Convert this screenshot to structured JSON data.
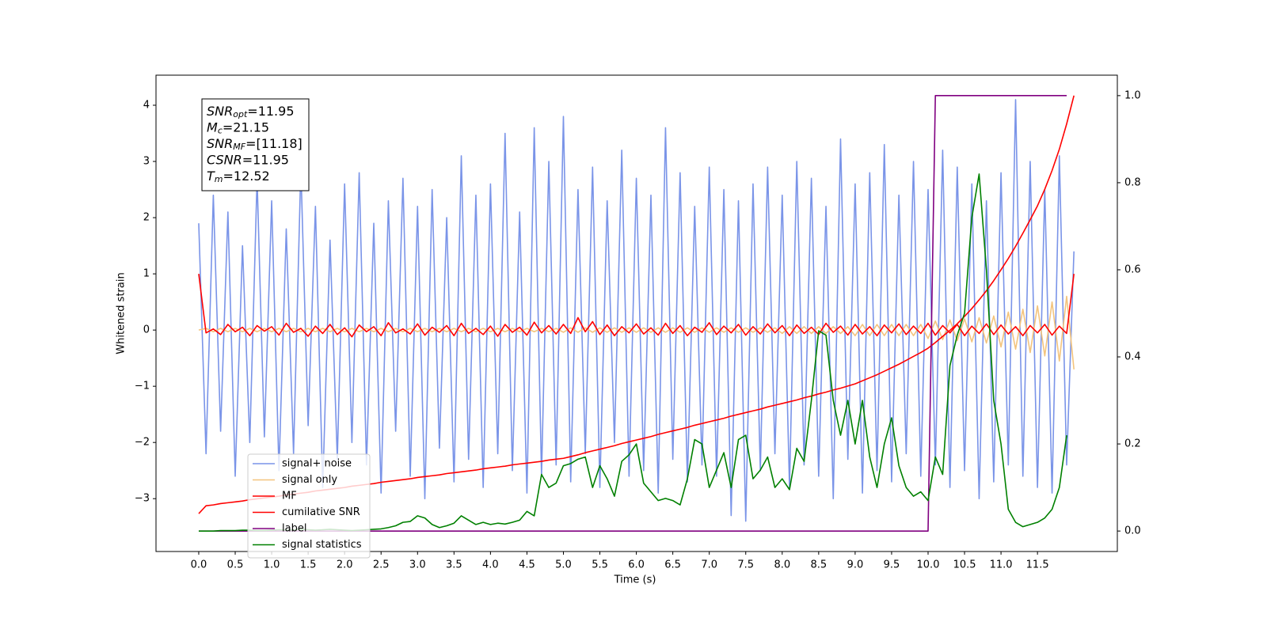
{
  "chart_data": {
    "type": "line",
    "xlabel": "Time (s)",
    "ylabel": "Whitened strain",
    "xlim": [
      -0.586,
      12.595
    ],
    "ylim": [
      -3.94,
      4.535
    ],
    "y2lim": [
      -0.047,
      1.047
    ],
    "xticks": [
      {
        "value": 0,
        "label": "0.0"
      },
      0.5,
      {
        "value": 1,
        "label": "1.0"
      },
      1.5,
      {
        "value": 2,
        "label": "2.0"
      },
      2.5,
      {
        "value": 3,
        "label": "3.0"
      },
      3.5,
      {
        "value": 4,
        "label": "4.0"
      },
      4.5,
      {
        "value": 5,
        "label": "5.0"
      },
      5.5,
      {
        "value": 6,
        "label": "6.0"
      },
      6.5,
      {
        "value": 7,
        "label": "7.0"
      },
      7.5,
      {
        "value": 8,
        "label": "8.0"
      },
      8.5,
      {
        "value": 9,
        "label": "9.0"
      },
      9.5,
      {
        "value": 10,
        "label": "10.0"
      },
      10.5,
      {
        "value": 11,
        "label": "11.0"
      },
      11.5
    ],
    "yticks": [
      {
        "value": -3,
        "label": "−3"
      },
      {
        "value": -2,
        "label": "−2"
      },
      {
        "value": -1,
        "label": "−1"
      },
      0,
      1,
      2,
      3,
      4
    ],
    "y2ticks": [
      {
        "value": 0,
        "label": "0.0"
      },
      0.2,
      0.4,
      0.6,
      0.8,
      {
        "value": 1,
        "label": "1.0"
      }
    ],
    "legend": "lower left",
    "grid": false,
    "annotation": [
      {
        "name": "SNR",
        "sub": "opt",
        "text": "=11.95"
      },
      {
        "name": "M",
        "sub": "c",
        "text": "=21.15"
      },
      {
        "name": "SNR",
        "sub": "MF",
        "text": "=[11.18]"
      },
      {
        "name": "CSNR",
        "text": "=11.95"
      },
      {
        "name": "T",
        "sub": "m",
        "text": "=12.52"
      }
    ],
    "x": [
      0,
      0.1,
      0.2,
      0.3,
      0.4,
      0.5,
      0.6,
      0.7,
      0.8,
      0.9,
      1.0,
      1.1,
      1.2,
      1.3,
      1.4,
      1.5,
      1.6,
      1.7,
      1.8,
      1.9,
      2.0,
      2.1,
      2.2,
      2.3,
      2.4,
      2.5,
      2.6,
      2.7,
      2.8,
      2.9,
      3.0,
      3.1,
      3.2,
      3.3,
      3.4,
      3.5,
      3.6,
      3.7,
      3.8,
      3.9,
      4.0,
      4.1,
      4.2,
      4.3,
      4.4,
      4.5,
      4.6,
      4.7,
      4.8,
      4.9,
      5.0,
      5.1,
      5.2,
      5.3,
      5.4,
      5.5,
      5.6,
      5.7,
      5.8,
      5.9,
      6.0,
      6.1,
      6.2,
      6.3,
      6.4,
      6.5,
      6.6,
      6.7,
      6.8,
      6.9,
      7.0,
      7.1,
      7.2,
      7.3,
      7.4,
      7.5,
      7.6,
      7.7,
      7.8,
      7.9,
      8.0,
      8.1,
      8.2,
      8.3,
      8.4,
      8.5,
      8.6,
      8.7,
      8.8,
      8.9,
      9.0,
      9.1,
      9.2,
      9.3,
      9.4,
      9.5,
      9.6,
      9.7,
      9.8,
      9.9,
      10.0,
      10.1,
      10.2,
      10.3,
      10.4,
      10.5,
      10.6,
      10.7,
      10.8,
      10.9,
      11.0,
      11.1,
      11.2,
      11.3,
      11.4,
      11.5,
      11.6,
      11.7,
      11.8,
      11.9,
      12.0
    ],
    "series": [
      {
        "name": "signal+ noise",
        "color": "#7a94e8",
        "values": [
          1.9,
          -2.2,
          2.4,
          -1.8,
          2.1,
          -2.6,
          1.5,
          -2.0,
          2.7,
          -1.9,
          2.3,
          -2.5,
          1.8,
          -2.2,
          2.9,
          -1.7,
          2.2,
          -2.8,
          1.6,
          -2.3,
          2.6,
          -2.0,
          2.8,
          -2.4,
          1.9,
          -2.9,
          2.3,
          -1.8,
          2.7,
          -2.6,
          2.2,
          -3.0,
          2.5,
          -2.1,
          2.0,
          -2.7,
          3.1,
          -2.3,
          2.4,
          -2.8,
          2.6,
          -2.2,
          3.5,
          -2.5,
          2.1,
          -2.9,
          3.6,
          -2.6,
          3.0,
          -2.4,
          3.8,
          -2.7,
          2.5,
          -2.2,
          2.9,
          -2.8,
          2.3,
          -2.0,
          3.2,
          -2.6,
          2.7,
          -2.5,
          2.4,
          -2.9,
          3.6,
          -2.3,
          2.8,
          -2.7,
          2.2,
          -2.4,
          2.9,
          -2.6,
          2.5,
          -3.3,
          2.3,
          -3.4,
          2.6,
          -2.5,
          2.9,
          -2.2,
          2.4,
          -2.8,
          3.0,
          -2.4,
          2.7,
          -2.6,
          2.2,
          -3.0,
          3.4,
          -2.3,
          2.6,
          -2.9,
          2.8,
          -2.5,
          3.3,
          -2.7,
          2.4,
          -2.2,
          3.0,
          -2.6,
          2.5,
          -2.4,
          3.2,
          -2.8,
          2.9,
          -2.5,
          2.6,
          -3.0,
          2.3,
          -2.7,
          2.8,
          -2.4,
          4.1,
          -2.6,
          3.0,
          -2.8,
          2.5,
          -2.9,
          3.1,
          -2.4,
          1.4
        ]
      },
      {
        "name": "signal only",
        "color": "#f3c47e",
        "values": [
          0,
          0.03,
          -0.03,
          0.03,
          -0.03,
          0.03,
          -0.03,
          0.03,
          -0.03,
          0.03,
          -0.03,
          0.03,
          -0.03,
          0.03,
          -0.03,
          0.03,
          -0.03,
          0.03,
          -0.03,
          0.03,
          -0.03,
          0.03,
          -0.03,
          0.03,
          -0.03,
          0.03,
          -0.03,
          0.03,
          -0.03,
          0.03,
          -0.03,
          0.03,
          -0.03,
          0.03,
          -0.03,
          0.03,
          -0.03,
          0.03,
          -0.03,
          0.03,
          -0.03,
          0.03,
          -0.03,
          0.03,
          -0.03,
          0.03,
          -0.03,
          0.03,
          -0.03,
          0.03,
          -0.04,
          0.04,
          -0.04,
          0.04,
          -0.04,
          0.04,
          -0.04,
          0.04,
          -0.04,
          0.04,
          -0.04,
          0.04,
          -0.04,
          0.04,
          -0.04,
          0.04,
          -0.04,
          0.04,
          -0.04,
          0.04,
          -0.04,
          0.04,
          -0.04,
          0.04,
          -0.04,
          0.04,
          -0.04,
          0.04,
          -0.04,
          0.04,
          -0.06,
          0.06,
          -0.06,
          0.06,
          -0.06,
          0.06,
          -0.06,
          0.06,
          -0.06,
          0.06,
          -0.1,
          0.1,
          -0.1,
          0.1,
          -0.1,
          0.1,
          -0.1,
          0.1,
          -0.1,
          0.1,
          -0.15,
          0.16,
          -0.17,
          0.18,
          -0.19,
          0.2,
          -0.21,
          0.22,
          -0.23,
          0.25,
          -0.3,
          0.32,
          -0.34,
          0.37,
          -0.4,
          0.43,
          -0.46,
          0.5,
          -0.55,
          0.6,
          -0.7
        ]
      },
      {
        "name": "MF",
        "color": "#ff0000",
        "values": [
          1.0,
          -0.05,
          0.02,
          -0.08,
          0.1,
          -0.03,
          0.05,
          -0.1,
          0.08,
          -0.02,
          0.06,
          -0.09,
          0.12,
          -0.04,
          0.03,
          -0.11,
          0.07,
          -0.06,
          0.1,
          -0.08,
          0.04,
          -0.12,
          0.09,
          -0.03,
          0.06,
          -0.1,
          0.13,
          -0.05,
          0.02,
          -0.07,
          0.11,
          -0.09,
          0.05,
          -0.04,
          0.08,
          -0.1,
          0.12,
          -0.06,
          0.03,
          -0.08,
          0.07,
          -0.11,
          0.1,
          -0.04,
          0.05,
          -0.09,
          0.14,
          -0.05,
          0.08,
          -0.07,
          0.1,
          -0.06,
          0.22,
          -0.03,
          0.15,
          -0.08,
          0.09,
          -0.1,
          0.06,
          -0.05,
          0.11,
          -0.07,
          0.04,
          -0.09,
          0.12,
          -0.06,
          0.08,
          -0.1,
          0.05,
          -0.04,
          0.13,
          -0.08,
          0.07,
          -0.05,
          0.1,
          -0.09,
          0.06,
          -0.07,
          0.11,
          -0.05,
          0.08,
          -0.1,
          0.09,
          -0.06,
          0.05,
          -0.08,
          0.12,
          -0.04,
          0.07,
          -0.09,
          0.1,
          -0.07,
          0.06,
          -0.1,
          0.09,
          -0.05,
          0.11,
          -0.08,
          0.07,
          -0.06,
          0.12,
          -0.09,
          0.08,
          -0.05,
          0.1,
          -0.1,
          0.07,
          -0.06,
          0.11,
          -0.08,
          0.09,
          -0.07,
          0.06,
          -0.1,
          0.08,
          -0.05,
          0.1,
          -0.09,
          0.07,
          -0.06,
          1.0
        ]
      },
      {
        "name": "cumilative SNR",
        "color": "#ff0000",
        "axis": "y2",
        "values": [
          0.04,
          0.058,
          0.06,
          0.063,
          0.065,
          0.067,
          0.069,
          0.072,
          0.074,
          0.076,
          0.078,
          0.08,
          0.083,
          0.085,
          0.087,
          0.089,
          0.092,
          0.094,
          0.096,
          0.098,
          0.1,
          0.103,
          0.105,
          0.107,
          0.109,
          0.112,
          0.114,
          0.116,
          0.118,
          0.12,
          0.123,
          0.125,
          0.127,
          0.129,
          0.132,
          0.134,
          0.136,
          0.138,
          0.14,
          0.143,
          0.145,
          0.147,
          0.149,
          0.152,
          0.154,
          0.156,
          0.158,
          0.16,
          0.163,
          0.165,
          0.167,
          0.171,
          0.175,
          0.18,
          0.184,
          0.188,
          0.192,
          0.196,
          0.201,
          0.205,
          0.209,
          0.213,
          0.217,
          0.222,
          0.226,
          0.23,
          0.234,
          0.238,
          0.243,
          0.247,
          0.251,
          0.255,
          0.259,
          0.264,
          0.268,
          0.272,
          0.276,
          0.28,
          0.285,
          0.289,
          0.293,
          0.297,
          0.301,
          0.306,
          0.31,
          0.315,
          0.319,
          0.324,
          0.328,
          0.333,
          0.338,
          0.345,
          0.352,
          0.359,
          0.367,
          0.375,
          0.383,
          0.392,
          0.401,
          0.41,
          0.42,
          0.433,
          0.447,
          0.461,
          0.476,
          0.493,
          0.511,
          0.531,
          0.552,
          0.575,
          0.6,
          0.626,
          0.654,
          0.684,
          0.715,
          0.747,
          0.785,
          0.828,
          0.877,
          0.935,
          1.0
        ]
      },
      {
        "name": "label",
        "color": "#800080",
        "axis": "y2",
        "values": [
          0,
          0,
          0,
          0,
          0,
          0,
          0,
          0,
          0,
          0,
          0,
          0,
          0,
          0,
          0,
          0,
          0,
          0,
          0,
          0,
          0,
          0,
          0,
          0,
          0,
          0,
          0,
          0,
          0,
          0,
          0,
          0,
          0,
          0,
          0,
          0,
          0,
          0,
          0,
          0,
          0,
          0,
          0,
          0,
          0,
          0,
          0,
          0,
          0,
          0,
          0,
          0,
          0,
          0,
          0,
          0,
          0,
          0,
          0,
          0,
          0,
          0,
          0,
          0,
          0,
          0,
          0,
          0,
          0,
          0,
          0,
          0,
          0,
          0,
          0,
          0,
          0,
          0,
          0,
          0,
          0,
          0,
          0,
          0,
          0,
          0,
          0,
          0,
          0,
          0,
          0,
          0,
          0,
          0,
          0,
          0,
          0,
          0,
          0,
          0,
          0,
          1,
          1,
          1,
          1,
          1,
          1,
          1,
          1,
          1,
          1,
          1,
          1,
          1,
          1,
          1,
          1,
          1,
          1,
          1,
          null
        ]
      },
      {
        "name": "signal statistics",
        "color": "#008000",
        "axis": "y2",
        "values": [
          0.0,
          0.0,
          0.0,
          0.001,
          0.001,
          0.001,
          0.002,
          0.002,
          0.001,
          0.001,
          0.002,
          0.003,
          0.002,
          0.003,
          0.004,
          0.003,
          0.002,
          0.003,
          0.004,
          0.003,
          0.002,
          0.001,
          0.002,
          0.003,
          0.004,
          0.005,
          0.008,
          0.012,
          0.02,
          0.022,
          0.035,
          0.03,
          0.015,
          0.008,
          0.012,
          0.018,
          0.035,
          0.025,
          0.015,
          0.02,
          0.015,
          0.018,
          0.016,
          0.02,
          0.025,
          0.045,
          0.035,
          0.13,
          0.1,
          0.11,
          0.15,
          0.155,
          0.165,
          0.17,
          0.1,
          0.15,
          0.12,
          0.08,
          0.16,
          0.175,
          0.2,
          0.11,
          0.09,
          0.07,
          0.075,
          0.07,
          0.06,
          0.12,
          0.21,
          0.2,
          0.1,
          0.14,
          0.18,
          0.1,
          0.21,
          0.22,
          0.12,
          0.14,
          0.17,
          0.1,
          0.12,
          0.095,
          0.19,
          0.16,
          0.3,
          0.46,
          0.45,
          0.3,
          0.22,
          0.3,
          0.2,
          0.3,
          0.17,
          0.1,
          0.2,
          0.26,
          0.15,
          0.1,
          0.08,
          0.09,
          0.07,
          0.17,
          0.13,
          0.38,
          0.45,
          0.5,
          0.72,
          0.82,
          0.6,
          0.3,
          0.2,
          0.05,
          0.02,
          0.01,
          0.015,
          0.02,
          0.03,
          0.05,
          0.1,
          0.22,
          null
        ]
      }
    ]
  }
}
